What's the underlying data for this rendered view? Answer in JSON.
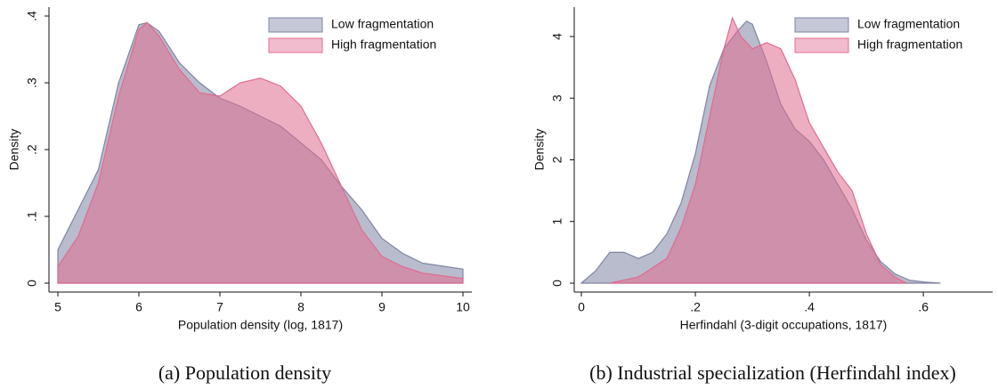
{
  "chart_data": [
    {
      "type": "area",
      "caption": "(a) Population density",
      "xlabel": "Population density (log, 1817)",
      "ylabel": "Density",
      "xlim": [
        5,
        10
      ],
      "ylim": [
        0,
        0.4
      ],
      "xticks": [
        5,
        6,
        7,
        8,
        9,
        10
      ],
      "yticks": [
        0,
        {
          "value": 0.1,
          "label": ".1"
        },
        {
          "value": 0.2,
          "label": ".2"
        },
        {
          "value": 0.3,
          "label": ".3"
        },
        {
          "value": 0.4,
          "label": ".4"
        }
      ],
      "legend": "top right",
      "series": [
        {
          "name": "Low fragmentation",
          "color": "#7f85a3",
          "x": [
            5,
            5.25,
            5.5,
            5.75,
            6,
            6.1,
            6.25,
            6.5,
            6.75,
            7,
            7.25,
            7.5,
            7.75,
            8,
            8.25,
            8.5,
            8.75,
            9,
            9.25,
            9.5,
            10
          ],
          "values": [
            0.05,
            0.11,
            0.17,
            0.3,
            0.387,
            0.39,
            0.377,
            0.33,
            0.3,
            0.277,
            0.265,
            0.25,
            0.235,
            0.21,
            0.185,
            0.145,
            0.11,
            0.067,
            0.045,
            0.03,
            0.021
          ]
        },
        {
          "name": "High fragmentation",
          "color": "#e06b90",
          "x": [
            5,
            5.25,
            5.5,
            5.75,
            6,
            6.1,
            6.25,
            6.5,
            6.75,
            7,
            7.25,
            7.5,
            7.75,
            8,
            8.25,
            8.5,
            8.75,
            9,
            9.25,
            9.5,
            10
          ],
          "values": [
            0.025,
            0.07,
            0.15,
            0.28,
            0.38,
            0.39,
            0.37,
            0.32,
            0.285,
            0.28,
            0.3,
            0.307,
            0.295,
            0.265,
            0.21,
            0.145,
            0.08,
            0.04,
            0.025,
            0.015,
            0.007
          ]
        }
      ]
    },
    {
      "type": "area",
      "caption": "(b) Industrial specialization (Herfindahl index)",
      "xlabel": "Herfindahl (3-digit occupations, 1817)",
      "ylabel": "Density",
      "xlim": [
        0,
        0.72
      ],
      "ylim": [
        0,
        4
      ],
      "xticks": [
        0,
        {
          "value": 0.2,
          "label": ".2"
        },
        {
          "value": 0.4,
          "label": ".4"
        },
        {
          "value": 0.6,
          "label": ".6"
        }
      ],
      "yticks": [
        0,
        1,
        2,
        3,
        4
      ],
      "legend": "top right",
      "series": [
        {
          "name": "Low fragmentation",
          "color": "#7f85a3",
          "x": [
            0,
            0.025,
            0.05,
            0.075,
            0.1,
            0.125,
            0.15,
            0.175,
            0.2,
            0.225,
            0.25,
            0.275,
            0.29,
            0.3,
            0.325,
            0.35,
            0.375,
            0.4,
            0.425,
            0.45,
            0.475,
            0.5,
            0.525,
            0.55,
            0.575,
            0.6,
            0.63
          ],
          "values": [
            0,
            0.2,
            0.5,
            0.5,
            0.4,
            0.5,
            0.8,
            1.3,
            2.1,
            3.2,
            3.8,
            4.1,
            4.25,
            4.2,
            3.6,
            2.9,
            2.5,
            2.3,
            2.0,
            1.6,
            1.2,
            0.7,
            0.35,
            0.15,
            0.05,
            0.02,
            0
          ]
        },
        {
          "name": "High fragmentation",
          "color": "#e06b90",
          "x": [
            0.05,
            0.1,
            0.15,
            0.175,
            0.2,
            0.225,
            0.25,
            0.265,
            0.28,
            0.3,
            0.325,
            0.35,
            0.375,
            0.4,
            0.425,
            0.45,
            0.475,
            0.5,
            0.525,
            0.55,
            0.57
          ],
          "values": [
            0,
            0.1,
            0.4,
            0.9,
            1.6,
            2.7,
            3.8,
            4.3,
            4.0,
            3.8,
            3.9,
            3.8,
            3.3,
            2.6,
            2.2,
            1.8,
            1.5,
            0.8,
            0.3,
            0.1,
            0
          ]
        }
      ]
    }
  ]
}
